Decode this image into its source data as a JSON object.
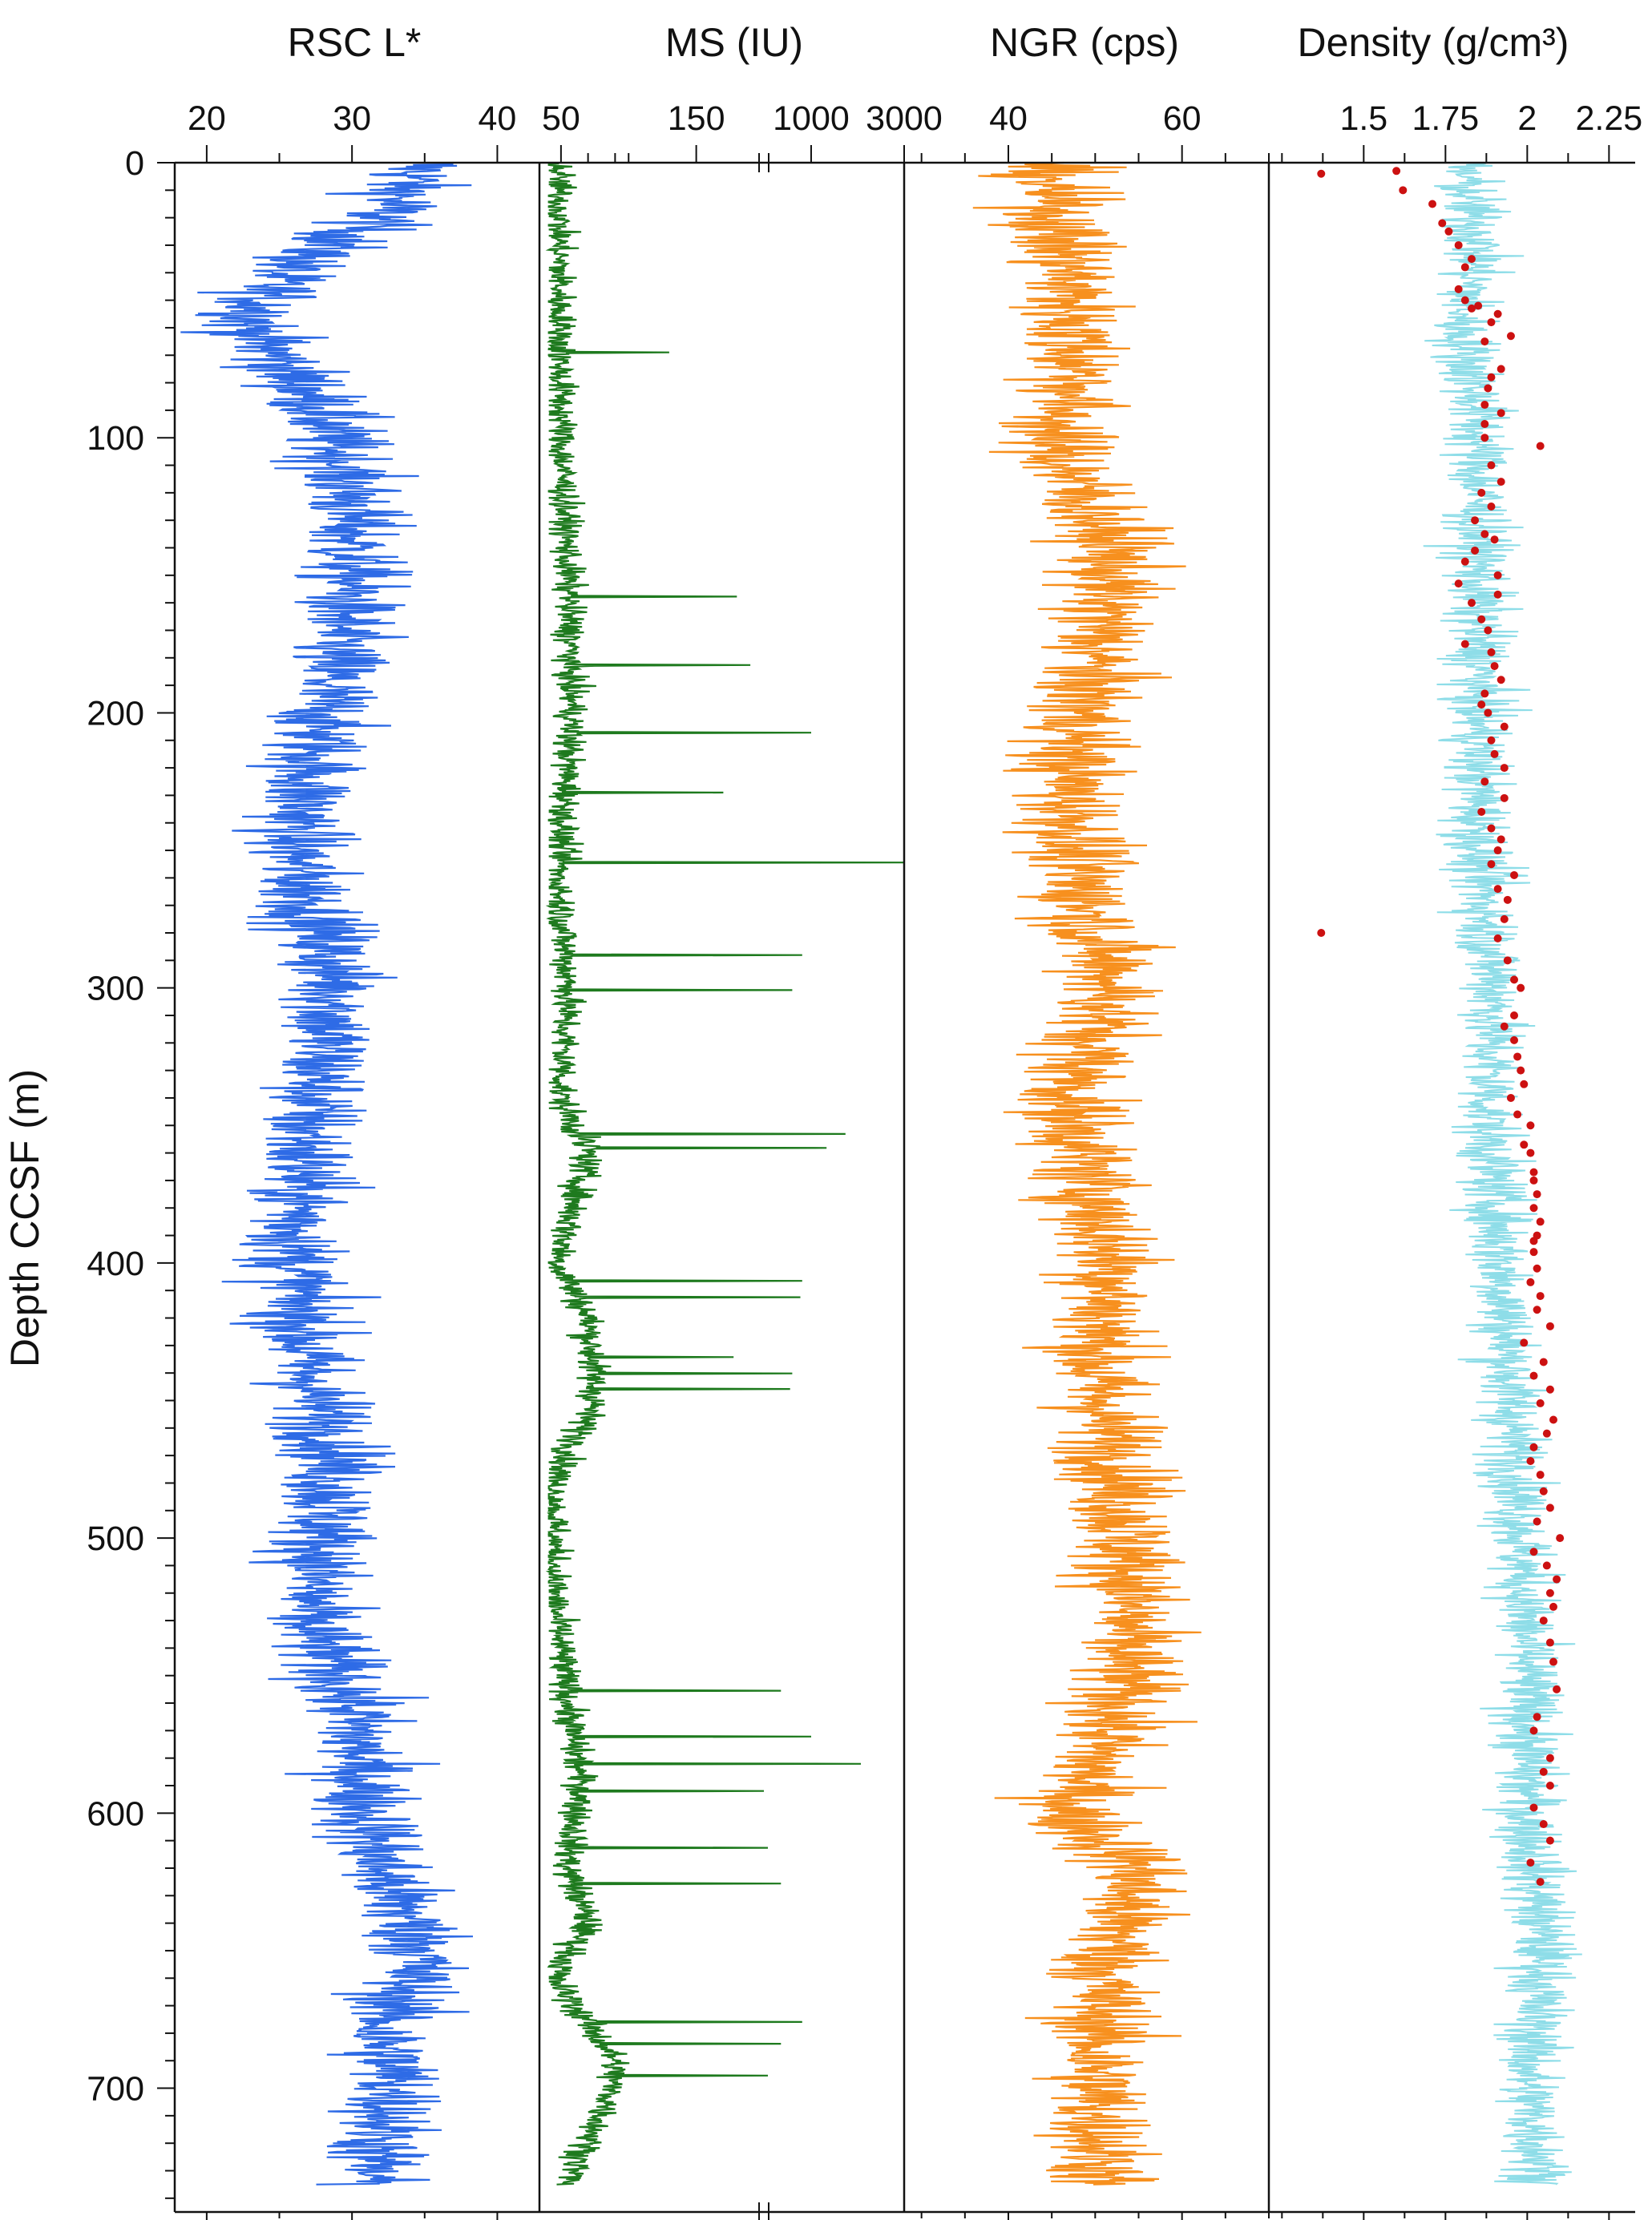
{
  "chart_data": {
    "type": "line",
    "y_axis": {
      "label": "Depth CCSF (m)",
      "range": [
        0,
        745
      ],
      "ticks": [
        0,
        100,
        200,
        300,
        400,
        500,
        600,
        700
      ],
      "tick_labels": [
        "0",
        "100",
        "200",
        "300",
        "400",
        "500",
        "600",
        "700"
      ],
      "minor_step": 10,
      "inverted": true
    },
    "panels": [
      {
        "id": "rsc",
        "title": "RSC L*",
        "series_color": "#2E6BE6",
        "xlim": [
          17.8,
          42.9
        ],
        "ticks": [
          20,
          30,
          40
        ],
        "tick_labels": [
          "20",
          "30",
          "40"
        ],
        "minor_step": 5,
        "baseline": 30,
        "amplitude": 2.8,
        "profile": [
          [
            0,
            35
          ],
          [
            20,
            32
          ],
          [
            40,
            25
          ],
          [
            60,
            23
          ],
          [
            90,
            28
          ],
          [
            120,
            30
          ],
          [
            150,
            30
          ],
          [
            200,
            28
          ],
          [
            250,
            26
          ],
          [
            300,
            29
          ],
          [
            350,
            27
          ],
          [
            400,
            26
          ],
          [
            440,
            27
          ],
          [
            470,
            29
          ],
          [
            500,
            28
          ],
          [
            530,
            27
          ],
          [
            560,
            30
          ],
          [
            600,
            31
          ],
          [
            620,
            32
          ],
          [
            650,
            35
          ],
          [
            680,
            32
          ],
          [
            700,
            33
          ],
          [
            720,
            32
          ],
          [
            735,
            31
          ]
        ]
      },
      {
        "id": "ms",
        "title": "MS (IU)",
        "series_color": "#1E7A1E",
        "xlim": [
          40,
          5000
        ],
        "scale": "broken-log",
        "ticks": [
          50,
          150,
          1000,
          3000
        ],
        "tick_labels": [
          "50",
          "150",
          "1000",
          "3000"
        ],
        "baseline": 45,
        "amplitude": 9,
        "profile": [
          [
            0,
            48
          ],
          [
            100,
            50
          ],
          [
            150,
            55
          ],
          [
            200,
            58
          ],
          [
            260,
            48
          ],
          [
            300,
            55
          ],
          [
            340,
            50
          ],
          [
            360,
            70
          ],
          [
            400,
            48
          ],
          [
            420,
            70
          ],
          [
            450,
            75
          ],
          [
            480,
            45
          ],
          [
            520,
            45
          ],
          [
            560,
            55
          ],
          [
            590,
            65
          ],
          [
            620,
            55
          ],
          [
            640,
            70
          ],
          [
            660,
            45
          ],
          [
            690,
            90
          ],
          [
            705,
            85
          ],
          [
            735,
            55
          ]
        ],
        "spikes": [
          [
            70,
            130
          ],
          [
            160,
            180
          ],
          [
            185,
            190
          ],
          [
            210,
            1000
          ],
          [
            232,
            170
          ],
          [
            258,
            3000
          ],
          [
            292,
            900
          ],
          [
            305,
            800
          ],
          [
            358,
            1500
          ],
          [
            363,
            1200
          ],
          [
            412,
            900
          ],
          [
            418,
            880
          ],
          [
            440,
            400
          ],
          [
            446,
            800
          ],
          [
            452,
            780
          ],
          [
            563,
            700
          ],
          [
            580,
            1000
          ],
          [
            590,
            1800
          ],
          [
            600,
            200
          ],
          [
            621,
            600
          ],
          [
            634,
            700
          ],
          [
            685,
            900
          ],
          [
            693,
            700
          ],
          [
            705,
            600
          ]
        ]
      },
      {
        "id": "ngr",
        "title": "NGR (cps)",
        "series_color": "#F7901E",
        "xlim": [
          28,
          70
        ],
        "ticks": [
          40,
          60
        ],
        "tick_labels": [
          "40",
          "60"
        ],
        "minor_step": 5,
        "baseline": 48,
        "amplitude": 5,
        "profile": [
          [
            0,
            44
          ],
          [
            40,
            47
          ],
          [
            80,
            48
          ],
          [
            100,
            45
          ],
          [
            140,
            52
          ],
          [
            180,
            50
          ],
          [
            220,
            47
          ],
          [
            260,
            48
          ],
          [
            300,
            52
          ],
          [
            340,
            47
          ],
          [
            380,
            50
          ],
          [
            400,
            52
          ],
          [
            440,
            50
          ],
          [
            480,
            53
          ],
          [
            520,
            54
          ],
          [
            560,
            53
          ],
          [
            600,
            47
          ],
          [
            620,
            55
          ],
          [
            660,
            51
          ],
          [
            700,
            50
          ],
          [
            735,
            51
          ]
        ]
      },
      {
        "id": "density",
        "title": "Density (g/cm³)",
        "series_color": "#8EDDE8",
        "xlim": [
          1.21,
          2.33
        ],
        "ticks": [
          1.5,
          1.75,
          2,
          2.25
        ],
        "tick_labels": [
          "1.5",
          "1.75",
          "2",
          "2.25"
        ],
        "minor_step": 0.125,
        "baseline": 1.9,
        "amplitude": 0.08,
        "profile": [
          [
            0,
            1.8
          ],
          [
            30,
            1.85
          ],
          [
            60,
            1.8
          ],
          [
            90,
            1.85
          ],
          [
            150,
            1.85
          ],
          [
            200,
            1.85
          ],
          [
            250,
            1.85
          ],
          [
            300,
            1.9
          ],
          [
            350,
            1.88
          ],
          [
            400,
            1.92
          ],
          [
            450,
            1.95
          ],
          [
            500,
            1.98
          ],
          [
            550,
            2.0
          ],
          [
            600,
            2.0
          ],
          [
            650,
            2.05
          ],
          [
            700,
            2.0
          ],
          [
            735,
            2.05
          ]
        ],
        "points": {
          "color": "#CC1111",
          "x": [
            1.37,
            1.6,
            1.62,
            1.71,
            1.74,
            1.76,
            1.79,
            1.83,
            1.81,
            1.79,
            1.85,
            1.81,
            1.83,
            1.91,
            1.89,
            1.95,
            1.87,
            1.92,
            1.89,
            1.88,
            1.87,
            1.92,
            1.87,
            1.87,
            2.04,
            1.89,
            1.92,
            1.86,
            1.89,
            1.84,
            1.87,
            1.9,
            1.84,
            1.81,
            1.91,
            1.79,
            1.91,
            1.83,
            1.86,
            1.88,
            1.81,
            1.89,
            1.9,
            1.92,
            1.87,
            1.86,
            1.88,
            1.93,
            1.89,
            1.9,
            1.93,
            1.87,
            1.93,
            1.86,
            1.89,
            1.92,
            1.91,
            1.89,
            1.96,
            1.91,
            1.94,
            1.93,
            1.91,
            1.94,
            1.96,
            1.98,
            1.96,
            1.93,
            1.96,
            1.97,
            1.98,
            1.99,
            1.95,
            1.97,
            2.01,
            1.99,
            2.01,
            2.02,
            2.02,
            2.03,
            2.02,
            2.04,
            2.03,
            2.02,
            2.02,
            2.03,
            2.01,
            2.04,
            2.03,
            2.07,
            1.99,
            2.05,
            2.02,
            2.07,
            2.04,
            2.08,
            2.06,
            2.02,
            2.01,
            2.04,
            2.05,
            2.07,
            2.03,
            2.1,
            2.02,
            2.06,
            2.09,
            2.07,
            2.08,
            2.05,
            2.07,
            2.08,
            2.09,
            2.03,
            2.02,
            2.07,
            2.05,
            2.07,
            2.02,
            2.05,
            2.07,
            2.01,
            2.04,
            1.37
          ],
          "y": [
            4,
            3,
            10,
            15,
            22,
            25,
            30,
            35,
            38,
            46,
            52,
            50,
            53,
            55,
            58,
            63,
            65,
            75,
            78,
            82,
            88,
            91,
            95,
            100,
            103,
            110,
            116,
            120,
            125,
            130,
            135,
            137,
            141,
            145,
            150,
            153,
            157,
            160,
            166,
            170,
            175,
            178,
            183,
            188,
            193,
            197,
            200,
            205,
            210,
            215,
            220,
            225,
            231,
            236,
            242,
            246,
            250,
            255,
            259,
            264,
            268,
            275,
            282,
            290,
            297,
            300,
            310,
            314,
            319,
            325,
            330,
            335,
            340,
            346,
            350,
            357,
            360,
            367,
            370,
            375,
            380,
            385,
            390,
            392,
            396,
            402,
            407,
            412,
            417,
            423,
            429,
            436,
            441,
            446,
            451,
            457,
            462,
            467,
            472,
            477,
            483,
            489,
            494,
            500,
            505,
            510,
            515,
            520,
            525,
            530,
            538,
            545,
            555,
            565,
            570,
            580,
            585,
            590,
            598,
            604,
            610,
            618,
            625,
            280
          ]
        }
      }
    ]
  }
}
